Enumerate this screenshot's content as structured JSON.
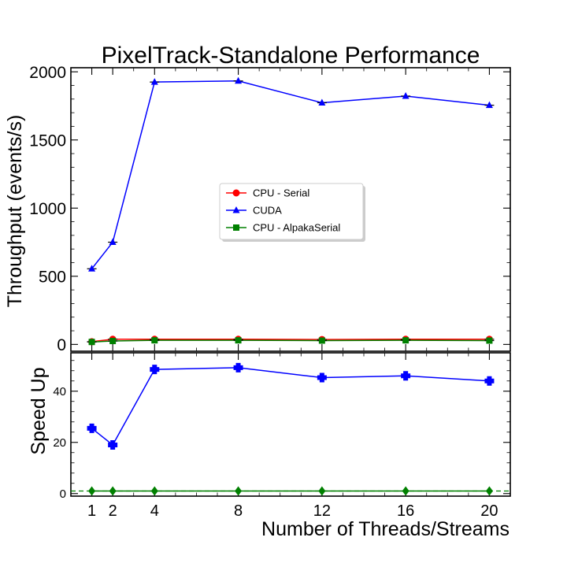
{
  "chart_data": [
    {
      "type": "line",
      "title": "PixelTrack-Standalone Performance",
      "ylabel": "Throughput (events/s)",
      "xlabel": "",
      "x": [
        1,
        2,
        4,
        8,
        12,
        16,
        20
      ],
      "xlim": [
        0,
        21
      ],
      "ylim": [
        -50,
        2030
      ],
      "yticks": [
        0,
        500,
        1000,
        1500,
        2000
      ],
      "xticks": [],
      "grid": false,
      "legend_position": "center",
      "series": [
        {
          "name": "CPU - Serial",
          "color": "#ff0000",
          "marker": "circle",
          "values": [
            20,
            38,
            38,
            38,
            36,
            38,
            38
          ]
        },
        {
          "name": "CUDA",
          "color": "#0000ff",
          "marker": "triangle",
          "values": [
            555,
            750,
            1925,
            1933,
            1773,
            1822,
            1755
          ]
        },
        {
          "name": "CPU - AlpakaSerial",
          "color": "#008000",
          "marker": "square",
          "values": [
            18,
            25,
            30,
            30,
            28,
            30,
            28
          ]
        }
      ]
    },
    {
      "type": "line",
      "title": "",
      "ylabel": "Speed Up",
      "xlabel": "Number of Threads/Streams",
      "x": [
        1,
        2,
        4,
        8,
        12,
        16,
        20
      ],
      "xlim": [
        0,
        21
      ],
      "ylim": [
        -1,
        55
      ],
      "yticks": [
        0,
        20,
        40
      ],
      "xticks": [
        1,
        2,
        4,
        8,
        12,
        16,
        20
      ],
      "grid": false,
      "reference_line": {
        "y": 1,
        "color": "#008000",
        "style": "dashed"
      },
      "series": [
        {
          "name": "",
          "color": "#0000ff",
          "marker": "plus",
          "values": [
            25.5,
            19,
            48.5,
            49.2,
            45.3,
            46,
            44
          ]
        },
        {
          "name": "",
          "color": "#008000",
          "marker": "diamond",
          "values": [
            1,
            1,
            1,
            1,
            1,
            1,
            1
          ]
        }
      ]
    }
  ]
}
